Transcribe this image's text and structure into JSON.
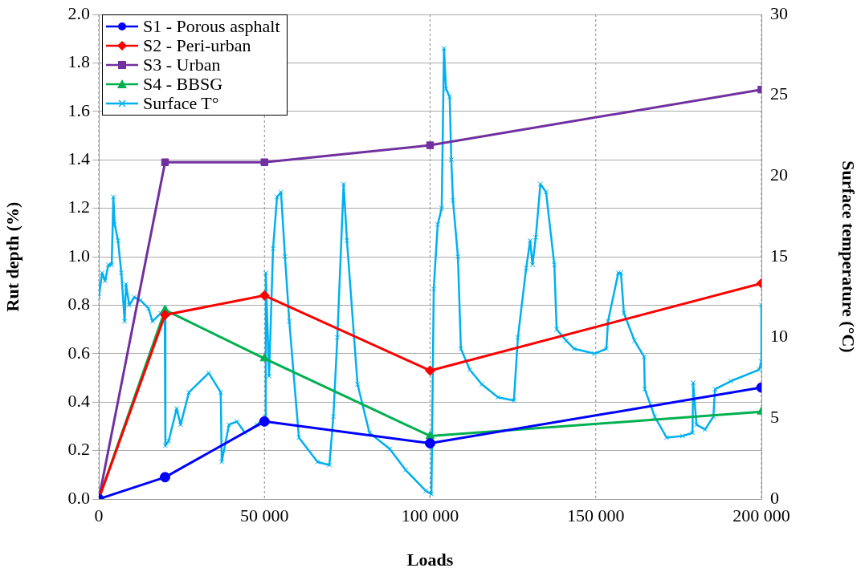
{
  "chart_data": {
    "type": "line",
    "xlabel": "Loads",
    "ylabel": "Rut depth (%)",
    "y2label": "Surface temperature (°C)",
    "xlim": [
      0,
      200000
    ],
    "xticks": [
      0,
      {
        "value": 50000,
        "label": "50 000"
      },
      {
        "value": 100000,
        "label": "100 000"
      },
      {
        "value": 150000,
        "label": "150 000"
      },
      {
        "value": 200000,
        "label": "200 000"
      }
    ],
    "ylim": [
      0,
      2
    ],
    "yticks": [
      {
        "value": 0,
        "label": "0.0"
      },
      {
        "value": 0.2,
        "label": "0.2"
      },
      {
        "value": 0.4,
        "label": "0.4"
      },
      {
        "value": 0.6,
        "label": "0.6"
      },
      {
        "value": 0.8,
        "label": "0.8"
      },
      {
        "value": 1,
        "label": "1.0"
      },
      {
        "value": 1.2,
        "label": "1.2"
      },
      {
        "value": 1.4,
        "label": "1.4"
      },
      {
        "value": 1.6,
        "label": "1.6"
      },
      {
        "value": 1.8,
        "label": "1.8"
      },
      {
        "value": 2,
        "label": "2.0"
      }
    ],
    "y2lim": [
      0,
      30
    ],
    "y2ticks": [
      0,
      5,
      10,
      15,
      20,
      25,
      30
    ],
    "grid": true,
    "legend": "top left",
    "series": [
      {
        "name": "S1 - Porous asphalt",
        "color": "#0000ff",
        "marker": "circle",
        "x": [
          0,
          20000,
          50000,
          100000,
          200000
        ],
        "values": [
          0,
          0.09,
          0.32,
          0.23,
          0.46
        ]
      },
      {
        "name": "S2 - Peri-urban",
        "color": "#ff0000",
        "marker": "diamond",
        "x": [
          0,
          20000,
          50000,
          100000,
          200000
        ],
        "values": [
          0,
          0.76,
          0.84,
          0.53,
          0.89
        ]
      },
      {
        "name": "S3 - Urban",
        "color": "#7030a0",
        "marker": "square",
        "x": [
          0,
          20000,
          50000,
          100000,
          200000
        ],
        "values": [
          0,
          1.39,
          1.39,
          1.46,
          1.69
        ]
      },
      {
        "name": "S4 - BBSG",
        "color": "#00b050",
        "marker": "triangle",
        "x": [
          0,
          20000,
          50000,
          100000,
          200000
        ],
        "values": [
          0,
          0.78,
          0.58,
          0.26,
          0.36
        ]
      },
      {
        "name": "Surface T°",
        "color": "#00b0f0",
        "marker": "cross",
        "axis": "y2",
        "x": [
          0,
          1000,
          1900,
          2900,
          3900,
          4400,
          4800,
          5800,
          6800,
          7800,
          8200,
          9200,
          10700,
          12600,
          15000,
          16200,
          18700,
          19900,
          20100,
          21100,
          23500,
          24700,
          27200,
          33200,
          36800,
          37100,
          39300,
          41700,
          44100,
          47800,
          50200,
          50400,
          51400,
          52600,
          53800,
          55000,
          56200,
          57500,
          60400,
          66000,
          69600,
          70800,
          72000,
          73900,
          74900,
          78100,
          81700,
          87800,
          92600,
          98700,
          100400,
          101100,
          102300,
          103500,
          104200,
          104800,
          105900,
          106400,
          106900,
          108400,
          109300,
          112000,
          115600,
          120500,
          125300,
          126500,
          129000,
          130200,
          130900,
          131900,
          133300,
          135000,
          137500,
          138200,
          141100,
          143500,
          149600,
          153200,
          153700,
          156800,
          157600,
          158500,
          161700,
          164600,
          164800,
          167800,
          171400,
          176200,
          179200,
          179400,
          180400,
          183000,
          185500,
          186000,
          190800,
          199300,
          200000,
          200000
        ],
        "values": [
          12.5,
          14,
          13.5,
          14.5,
          14.5,
          18.7,
          17,
          16,
          14,
          11,
          13.3,
          12,
          12.5,
          12.3,
          11.8,
          11,
          11.5,
          11.8,
          3.3,
          3.6,
          5.6,
          4.6,
          6.6,
          7.8,
          6.6,
          2.3,
          4.6,
          4.8,
          4.1,
          4.6,
          5.1,
          14,
          7.6,
          15.5,
          18.7,
          19,
          15,
          11,
          3.8,
          2.3,
          2.1,
          5.1,
          10,
          19.5,
          16,
          7.1,
          4.1,
          3.1,
          1.8,
          0.5,
          0.3,
          13,
          17,
          18,
          27.9,
          25.4,
          24.9,
          21,
          18.5,
          15,
          9.3,
          8,
          7.1,
          6.3,
          6.1,
          10,
          14.3,
          16,
          14.5,
          16.2,
          19.5,
          19,
          14.5,
          10.5,
          9.8,
          9.3,
          9,
          9.3,
          11,
          14,
          14,
          11.5,
          9.8,
          8.8,
          6.8,
          5.1,
          3.8,
          3.9,
          4.1,
          7.2,
          4.6,
          4.3,
          5.1,
          6.8,
          7.3,
          8,
          8.5,
          12
        ]
      }
    ]
  }
}
